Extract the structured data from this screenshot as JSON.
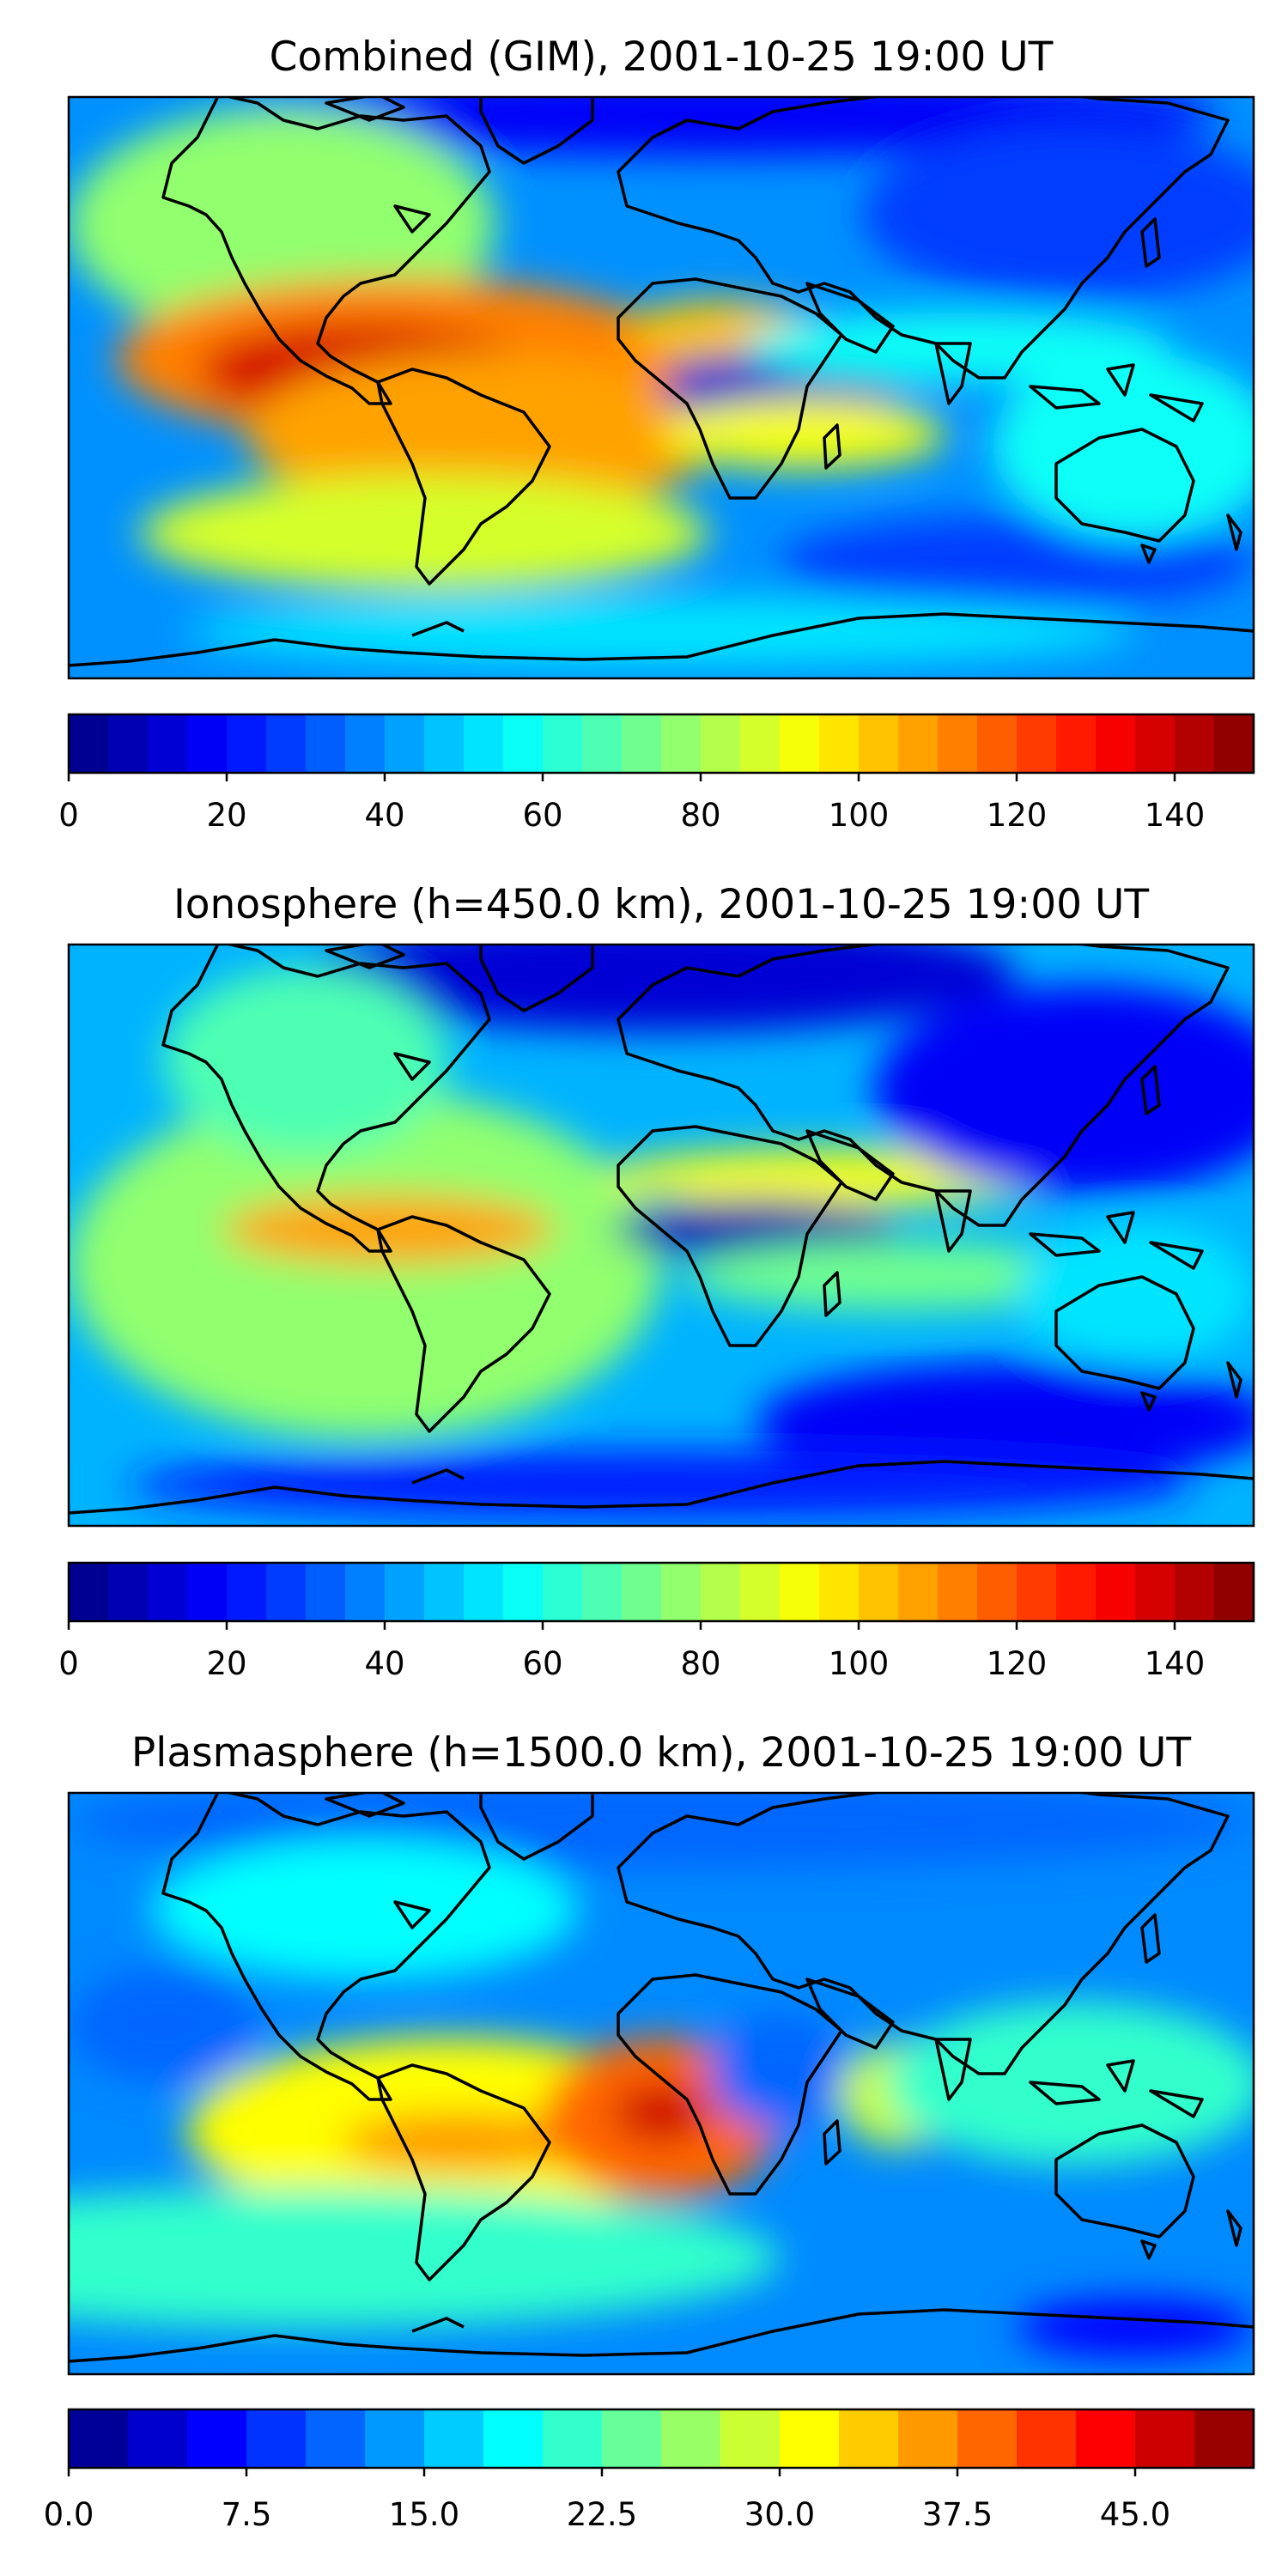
{
  "panels": [
    {
      "id": "combined",
      "title": "Combined (GIM), 2001-10-25 19:00 UT",
      "colorbar": {
        "min": 0,
        "max": 150,
        "levels": 30,
        "tick_labels": [
          "0",
          "20",
          "40",
          "60",
          "80",
          "100",
          "120",
          "140"
        ],
        "tick_values": [
          0,
          20,
          40,
          60,
          80,
          100,
          120,
          140
        ]
      }
    },
    {
      "id": "ionosphere",
      "title": "Ionosphere  (h=450.0 km), 2001-10-25 19:00 UT",
      "colorbar": {
        "min": 0,
        "max": 150,
        "levels": 30,
        "tick_labels": [
          "0",
          "20",
          "40",
          "60",
          "80",
          "100",
          "120",
          "140"
        ],
        "tick_values": [
          0,
          20,
          40,
          60,
          80,
          100,
          120,
          140
        ]
      }
    },
    {
      "id": "plasmasphere",
      "title": "Plasmasphere (h=1500.0 km), 2001-10-25 19:00 UT",
      "colorbar": {
        "min": 0,
        "max": 50,
        "levels": 20,
        "tick_labels": [
          "0.0",
          "7.5",
          "15.0",
          "22.5",
          "30.0",
          "37.5",
          "45.0"
        ],
        "tick_values": [
          0,
          7.5,
          15,
          22.5,
          30,
          37.5,
          45
        ]
      }
    }
  ],
  "colormap": "jet"
}
